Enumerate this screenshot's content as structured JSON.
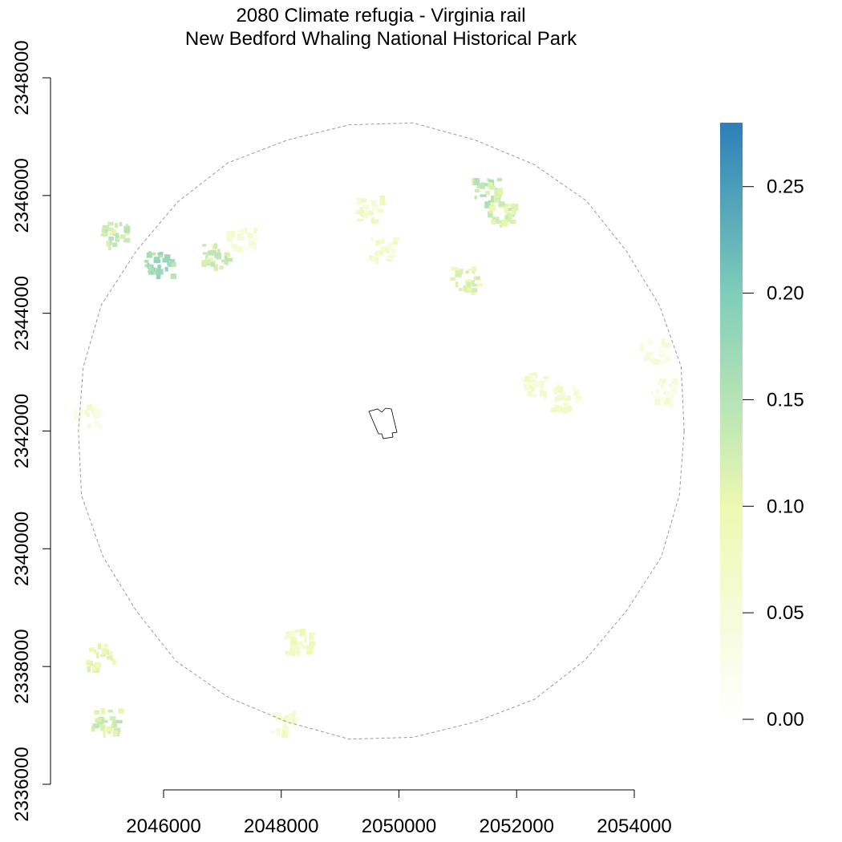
{
  "title": {
    "line1": "2080 Climate refugia - Virginia rail",
    "line2": "New Bedford Whaling National Historical Park"
  },
  "map": {
    "x_axis": {
      "ticks": [
        2046000,
        2048000,
        2050000,
        2052000,
        2054000
      ],
      "tick_labels": [
        "2046000",
        "2048000",
        "2050000",
        "2052000",
        "2054000"
      ]
    },
    "y_axis": {
      "ticks": [
        2336000,
        2338000,
        2340000,
        2342000,
        2344000,
        2346000,
        2348000
      ],
      "tick_labels": [
        "2336000",
        "2338000",
        "2340000",
        "2342000",
        "2344000",
        "2346000",
        "2348000"
      ]
    },
    "colors": {
      "buffer_outline": "#9a9a9a",
      "park_outline": "#000000"
    }
  },
  "legend": {
    "range": [
      0.0,
      0.28
    ],
    "ticks": [
      0.0,
      0.05,
      0.1,
      0.15,
      0.2,
      0.25
    ],
    "tick_labels": [
      "0.00",
      "0.05",
      "0.10",
      "0.15",
      "0.20",
      "0.25"
    ],
    "color_stops": [
      {
        "value": 0.0,
        "color": "#ffffff"
      },
      {
        "value": 0.1,
        "color": "#edf8b1"
      },
      {
        "value": 0.2,
        "color": "#7fcdbb"
      },
      {
        "value": 0.28,
        "color": "#2c7fb8"
      }
    ]
  },
  "habitat_patches": [
    {
      "x": 2045900,
      "y": 2344850,
      "value": 0.19
    },
    {
      "x": 2046850,
      "y": 2345000,
      "value": 0.15
    },
    {
      "x": 2045150,
      "y": 2345350,
      "value": 0.15
    },
    {
      "x": 2047300,
      "y": 2345250,
      "value": 0.07
    },
    {
      "x": 2049450,
      "y": 2345800,
      "value": 0.09
    },
    {
      "x": 2049700,
      "y": 2345100,
      "value": 0.09
    },
    {
      "x": 2051450,
      "y": 2346100,
      "value": 0.16
    },
    {
      "x": 2051700,
      "y": 2345700,
      "value": 0.14
    },
    {
      "x": 2051100,
      "y": 2344600,
      "value": 0.13
    },
    {
      "x": 2052300,
      "y": 2342800,
      "value": 0.08
    },
    {
      "x": 2052800,
      "y": 2342600,
      "value": 0.08
    },
    {
      "x": 2054500,
      "y": 2342700,
      "value": 0.07
    },
    {
      "x": 2054300,
      "y": 2343400,
      "value": 0.06
    },
    {
      "x": 2044700,
      "y": 2342300,
      "value": 0.07
    },
    {
      "x": 2044900,
      "y": 2338200,
      "value": 0.12
    },
    {
      "x": 2045000,
      "y": 2337100,
      "value": 0.15
    },
    {
      "x": 2048000,
      "y": 2337100,
      "value": 0.09
    },
    {
      "x": 2048250,
      "y": 2338450,
      "value": 0.1
    }
  ]
}
